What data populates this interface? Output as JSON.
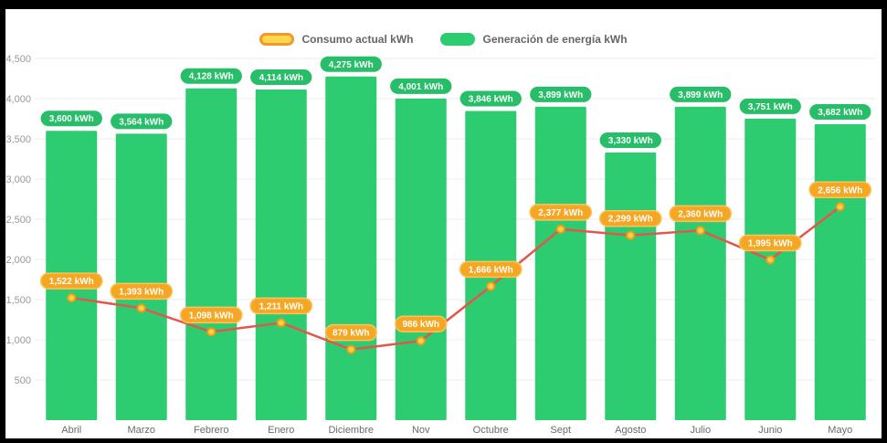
{
  "background_color": "#000000",
  "panel_color": "#ffffff",
  "legend": {
    "items": [
      {
        "label": "Consumo actual kWh",
        "series": "consumption"
      },
      {
        "label": "Generación de energía kWh",
        "series": "generation"
      }
    ]
  },
  "chart_data": {
    "type": "bar",
    "combo": "bar+line",
    "categories": [
      "Abril",
      "Marzo",
      "Febrero",
      "Enero",
      "Diciembre",
      "Nov",
      "Octubre",
      "Sept",
      "Agosto",
      "Julio",
      "Junio",
      "Mayo"
    ],
    "series": [
      {
        "name": "Generación de energía kWh",
        "type": "bar",
        "values": [
          3600,
          3564,
          4128,
          4114,
          4275,
          4001,
          3846,
          3899,
          3330,
          3899,
          3751,
          3682
        ],
        "color": "#2ecc71",
        "badge_color": "#27bd69"
      },
      {
        "name": "Consumo actual kWh",
        "type": "line",
        "values": [
          1522,
          1393,
          1098,
          1211,
          879,
          986,
          1666,
          2377,
          2299,
          2360,
          1995,
          2656
        ],
        "color": "#e2574b",
        "badge_color": "#f5a623",
        "badge_stroke": "#fcc45f",
        "marker_fill": "#ffd04d",
        "marker_stroke": "#f39c12"
      }
    ],
    "value_suffix": " kWh",
    "ylim": [
      0,
      4500
    ],
    "yticks": [
      500,
      1000,
      1500,
      2000,
      2500,
      3000,
      3500,
      4000,
      4500
    ],
    "grid": true,
    "legend_position": "top",
    "title": "",
    "xlabel": "",
    "ylabel": "",
    "axis": {
      "tick_color": "#999999",
      "month_color": "#6b6b6b",
      "grid_color": "#ececec"
    }
  }
}
